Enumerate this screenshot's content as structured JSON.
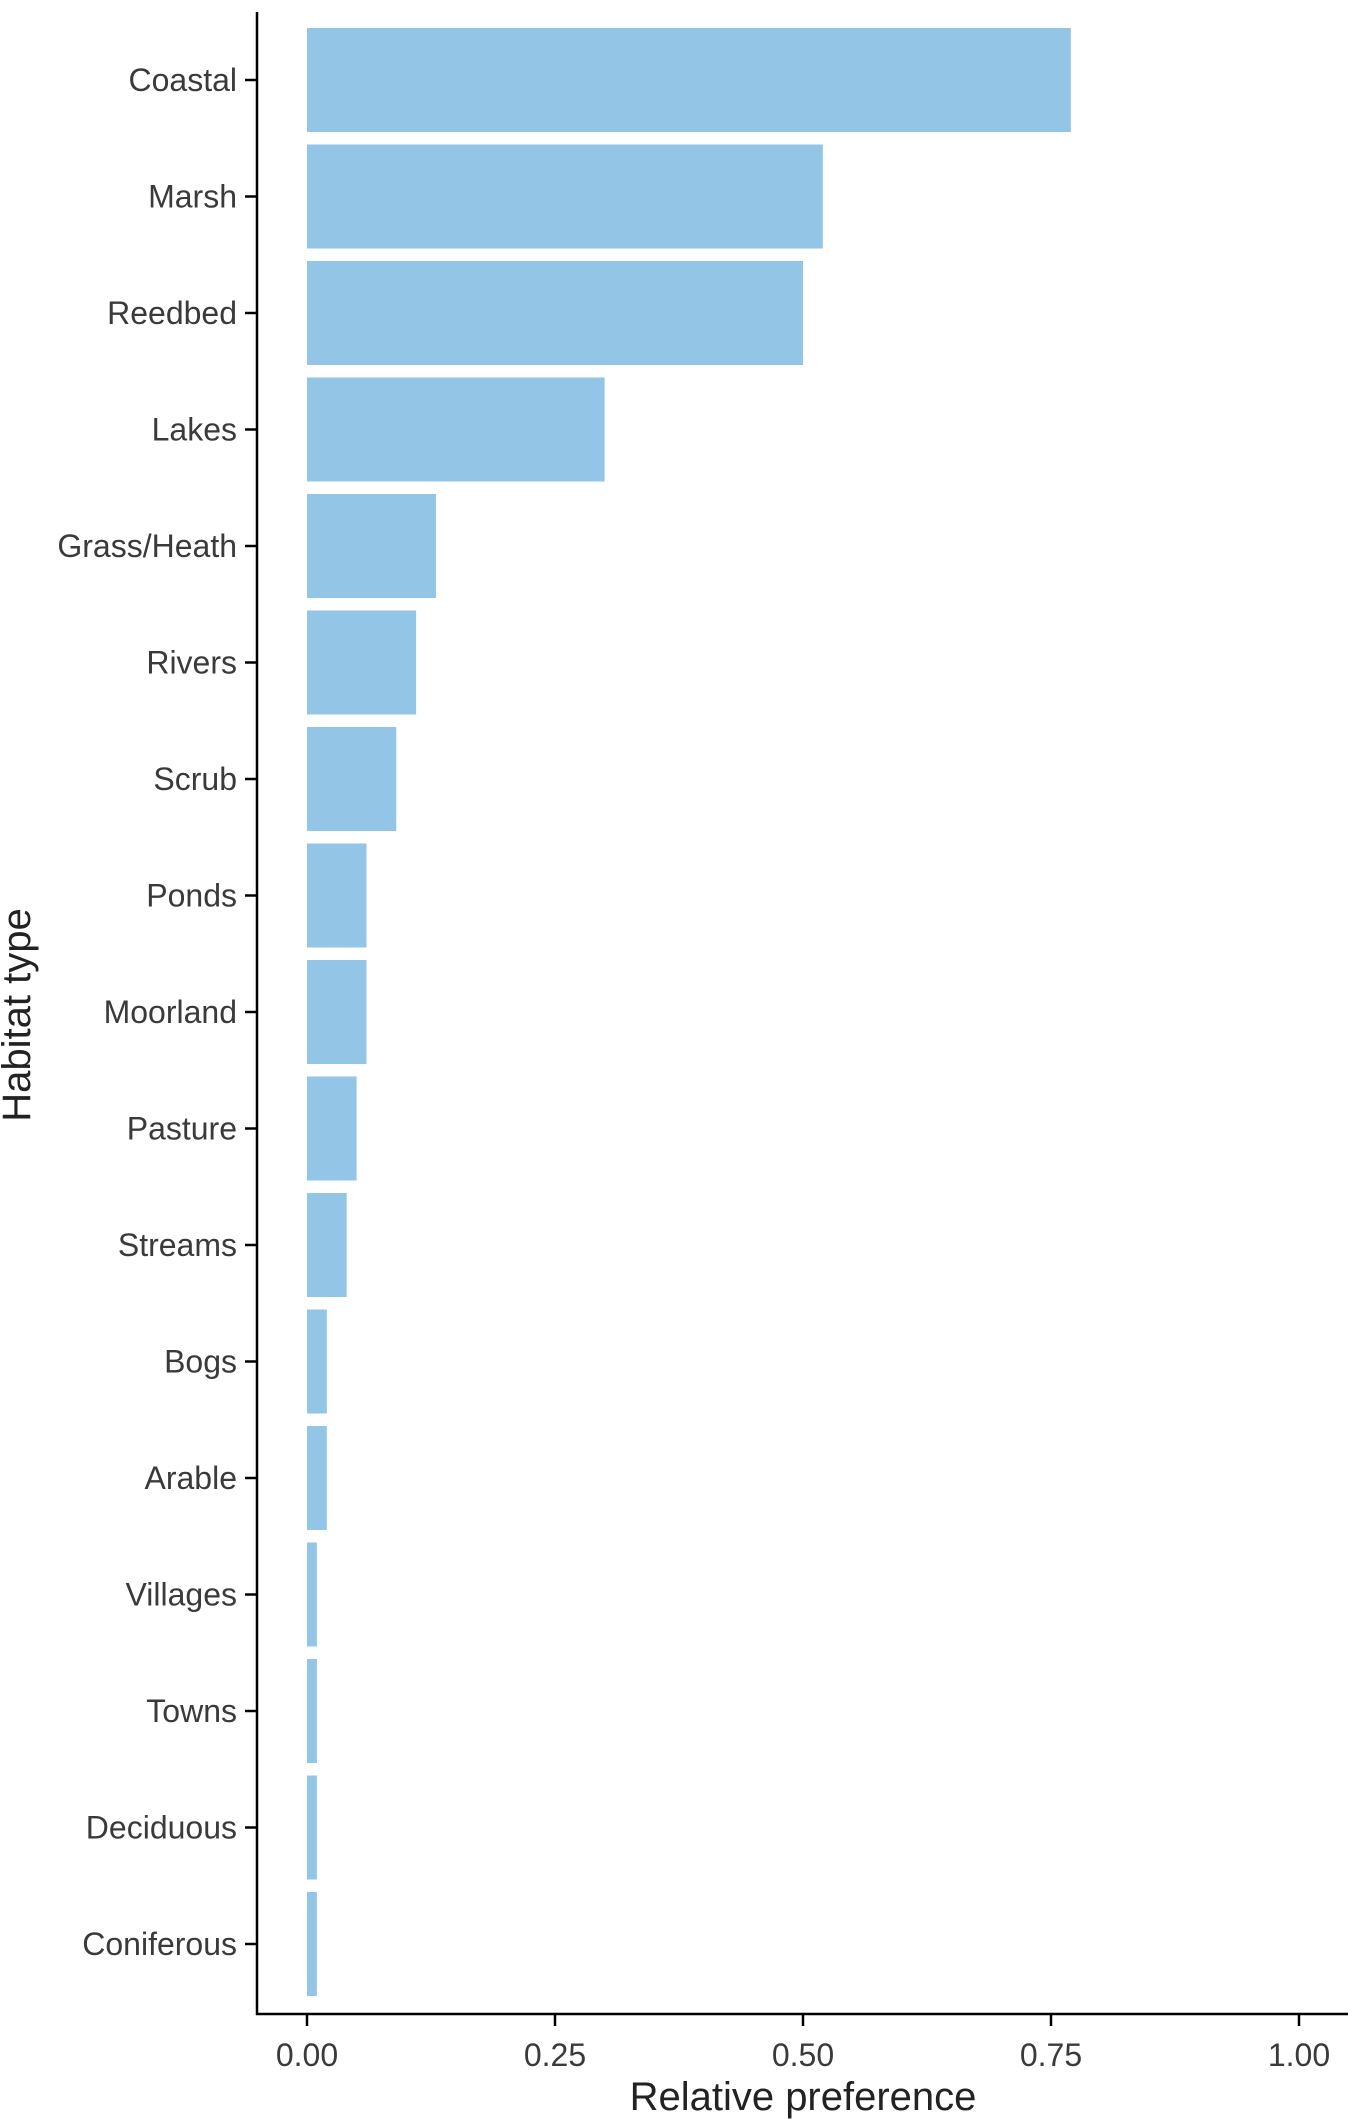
{
  "chart_data": {
    "type": "bar",
    "orientation": "horizontal",
    "xlabel": "Relative preference",
    "ylabel": "Habitat type",
    "xlim": [
      0,
      1
    ],
    "x_ticks": [
      "0.00",
      "0.25",
      "0.50",
      "0.75",
      "1.00"
    ],
    "x_tick_values": [
      0,
      0.25,
      0.5,
      0.75,
      1.0
    ],
    "categories": [
      "Coastal",
      "Marsh",
      "Reedbed",
      "Lakes",
      "Grass/Heath",
      "Rivers",
      "Scrub",
      "Ponds",
      "Moorland",
      "Pasture",
      "Streams",
      "Bogs",
      "Arable",
      "Villages",
      "Towns",
      "Deciduous",
      "Coniferous"
    ],
    "values": [
      0.77,
      0.52,
      0.5,
      0.3,
      0.13,
      0.11,
      0.09,
      0.06,
      0.06,
      0.05,
      0.04,
      0.02,
      0.02,
      0.01,
      0.01,
      0.01,
      0.01
    ],
    "bar_color": "#93c6e6",
    "grid": false,
    "legend": "none"
  }
}
